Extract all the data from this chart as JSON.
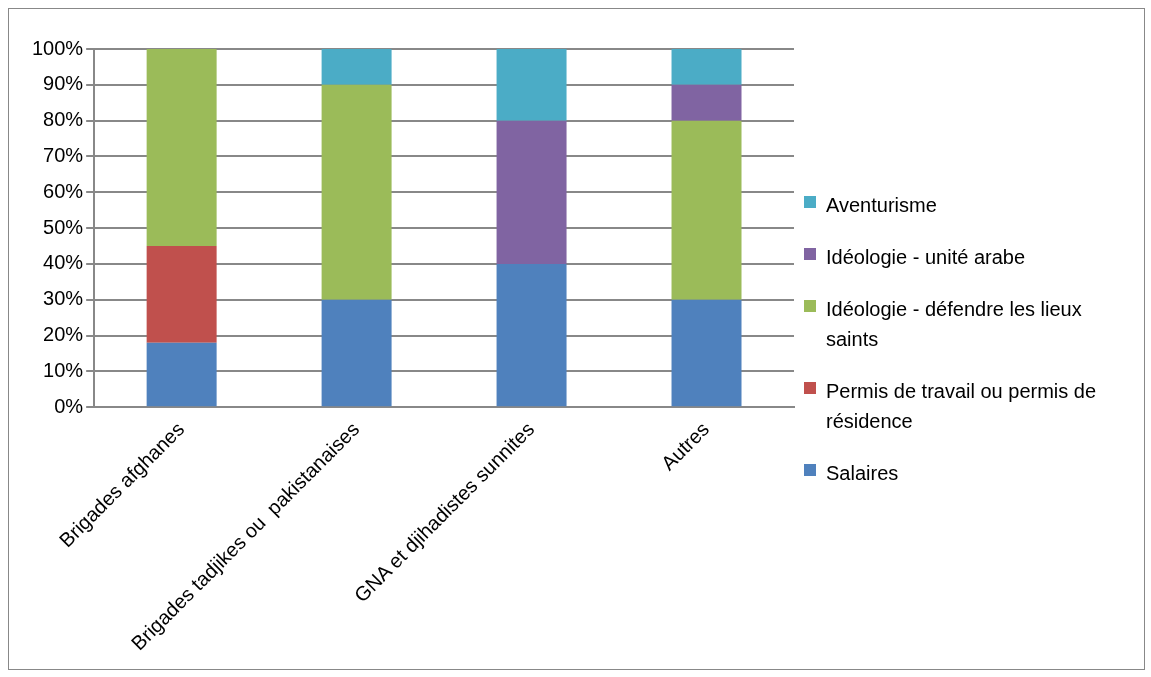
{
  "chart_data": {
    "type": "bar",
    "stacked": true,
    "categories": [
      "Brigades afghanes",
      "Brigades tadjikes ou  pakistanaises",
      "GNA et djihadistes sunnites",
      "Autres"
    ],
    "series": [
      {
        "name": "Salaires",
        "color": "#4f81bd",
        "values": [
          18,
          30,
          40,
          30
        ]
      },
      {
        "name": "Permis de travail ou permis de résidence",
        "color": "#c0504d",
        "values": [
          27,
          0,
          0,
          0
        ]
      },
      {
        "name": "Idéologie - défendre les lieux saints",
        "color": "#9bbb59",
        "values": [
          55,
          60,
          0,
          50
        ]
      },
      {
        "name": "Idéologie - unité arabe",
        "color": "#8064a2",
        "values": [
          0,
          0,
          40,
          10
        ]
      },
      {
        "name": "Aventurisme",
        "color": "#4bacc6",
        "values": [
          0,
          10,
          20,
          10
        ]
      }
    ],
    "ylim": [
      0,
      100
    ],
    "yticks": [
      {
        "value": 0,
        "label": "0%"
      },
      {
        "value": 10,
        "label": "10%"
      },
      {
        "value": 20,
        "label": "20%"
      },
      {
        "value": 30,
        "label": "30%"
      },
      {
        "value": 40,
        "label": "40%"
      },
      {
        "value": 50,
        "label": "50%"
      },
      {
        "value": 60,
        "label": "60%"
      },
      {
        "value": 70,
        "label": "70%"
      },
      {
        "value": 80,
        "label": "80%"
      },
      {
        "value": 90,
        "label": "90%"
      },
      {
        "value": 100,
        "label": "100%"
      }
    ],
    "grid": "y",
    "legend": "right"
  }
}
